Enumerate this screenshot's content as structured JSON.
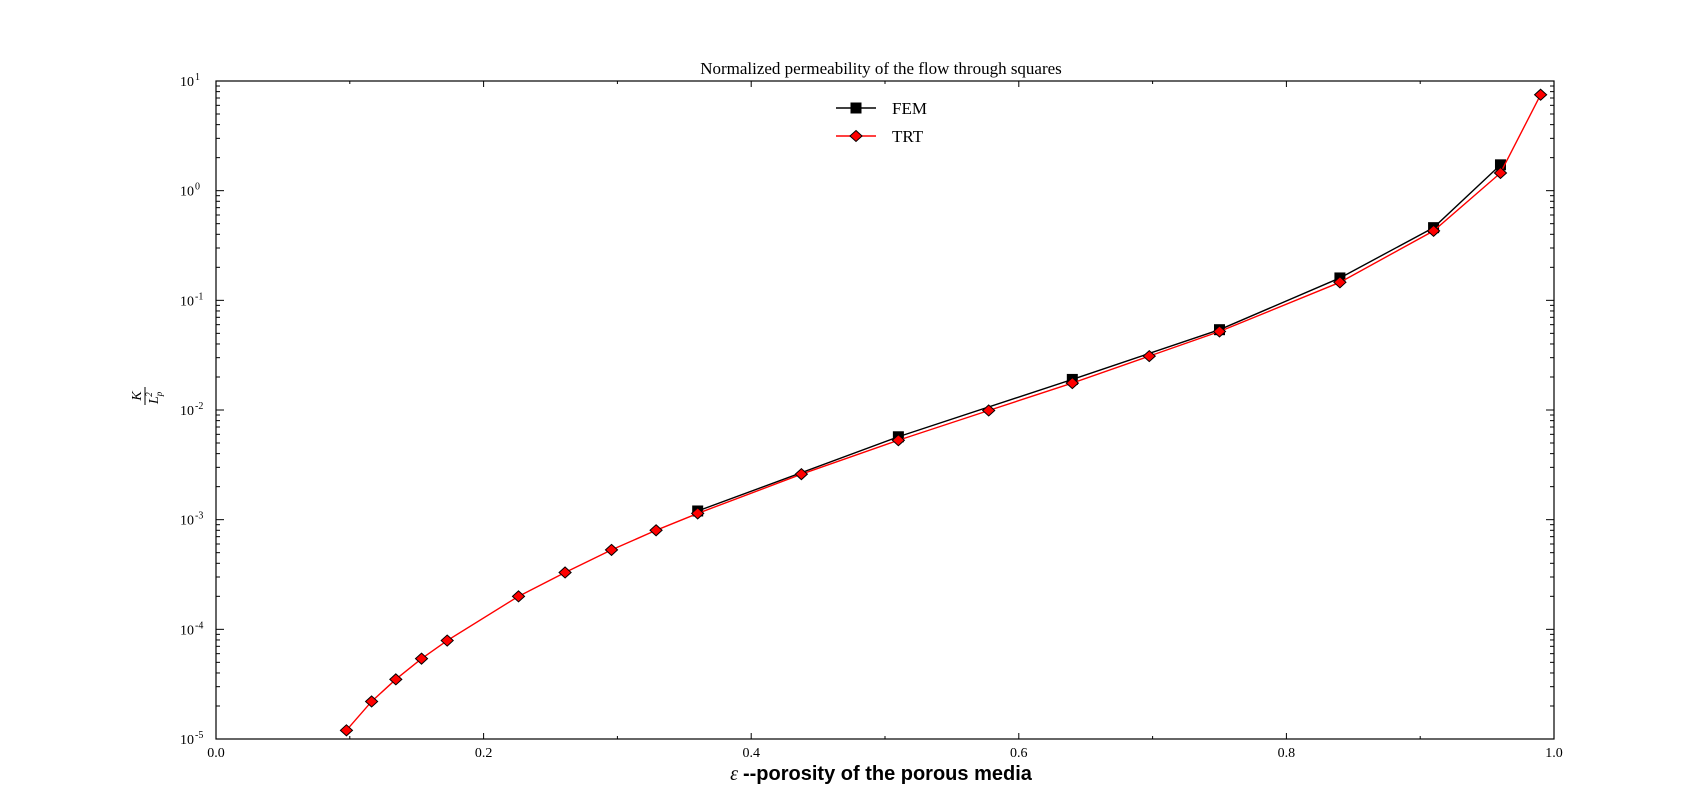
{
  "chart_data": {
    "type": "line",
    "title": "Normalized permeability of the flow through squares",
    "xlabel": {
      "symbol": "ε",
      "text": "--porosity of the porous media"
    },
    "ylabel": {
      "numerator": "K",
      "denominator_base": "L",
      "denominator_sub": "p",
      "denominator_sup": "2"
    },
    "xlim": [
      0.0,
      1.0
    ],
    "ylim": [
      1e-05,
      10
    ],
    "yscale": "log",
    "grid": false,
    "legend_position": "upper center",
    "x_ticks": [
      "0.0",
      "0.2",
      "0.4",
      "0.6",
      "0.8",
      "1.0"
    ],
    "y_ticks": [
      {
        "base": "10",
        "exp": "-5"
      },
      {
        "base": "10",
        "exp": "-4"
      },
      {
        "base": "10",
        "exp": "-3"
      },
      {
        "base": "10",
        "exp": "-2"
      },
      {
        "base": "10",
        "exp": "-1"
      },
      {
        "base": "10",
        "exp": "0"
      },
      {
        "base": "10",
        "exp": "1"
      }
    ],
    "series": [
      {
        "name": "FEM",
        "color": "#000000",
        "marker": "square",
        "x": [
          0.36,
          0.51,
          0.64,
          0.75,
          0.84,
          0.91,
          0.96
        ],
        "y": [
          0.0012,
          0.0057,
          0.019,
          0.054,
          0.16,
          0.46,
          1.72
        ]
      },
      {
        "name": "TRT",
        "color": "#ff0000",
        "marker": "diamond",
        "x": [
          0.0975,
          0.1163,
          0.1344,
          0.1536,
          0.1728,
          0.2261,
          0.2609,
          0.2956,
          0.3289,
          0.36,
          0.4375,
          0.51,
          0.5775,
          0.64,
          0.6975,
          0.75,
          0.84,
          0.91,
          0.96,
          0.99
        ],
        "y": [
          1.2e-05,
          2.2e-05,
          3.5e-05,
          5.4e-05,
          7.9e-05,
          0.0002,
          0.00033,
          0.00053,
          0.0008,
          0.00114,
          0.0026,
          0.0053,
          0.0099,
          0.0176,
          0.031,
          0.052,
          0.146,
          0.43,
          1.45,
          7.5
        ]
      }
    ]
  }
}
